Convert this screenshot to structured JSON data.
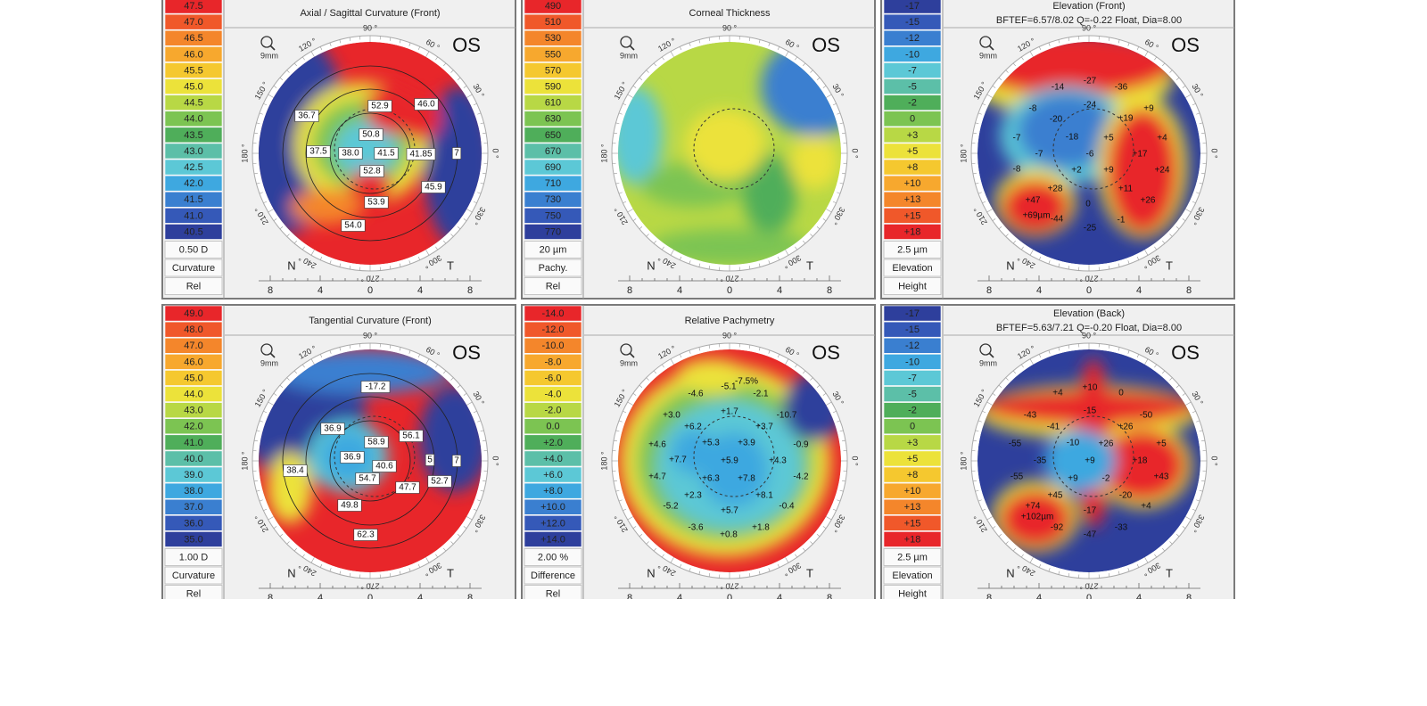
{
  "ring_labels": [
    "90 °",
    "60 °",
    "30 °",
    "0 °",
    "330 °",
    "300 °",
    "270 °",
    "240 °",
    "210 °",
    "180 °",
    "150 °",
    "120 °"
  ],
  "axis_labels": [
    "8",
    "4",
    "0",
    "4",
    "8"
  ],
  "nasal": "N",
  "temporal": "T",
  "eye": "OS",
  "zoom": "9mm",
  "panels": [
    {
      "title": "Axial / Sagittal Curvature (Front)",
      "scale": {
        "labels": [
          "47.5",
          "47.0",
          "46.5",
          "46.0",
          "45.5",
          "45.0",
          "44.5",
          "44.0",
          "43.5",
          "43.0",
          "42.5",
          "42.0",
          "41.5",
          "41.0",
          "40.5"
        ],
        "colors": [
          "#e8262a",
          "#f0582a",
          "#f4862b",
          "#f7a82e",
          "#f5c82f",
          "#ece23a",
          "#b8d845",
          "#7cc452",
          "#4fae5a",
          "#5cbfa8",
          "#5cc8d6",
          "#3ea8e0",
          "#3a7fd0",
          "#3559b8",
          "#2e3f9c"
        ],
        "step": "0.50 D",
        "kind": "Curvature",
        "mode": "Rel"
      },
      "annotations": [
        "36.7",
        "52.9",
        "46.0",
        "50.8",
        "37.5",
        "38.0",
        "41.5",
        "41.85",
        "7",
        "52.8",
        "45.9",
        "53.9",
        "54.0"
      ]
    },
    {
      "title": "Corneal Thickness",
      "scale": {
        "labels": [
          "490",
          "510",
          "530",
          "550",
          "570",
          "590",
          "610",
          "630",
          "650",
          "670",
          "690",
          "710",
          "730",
          "750",
          "770"
        ],
        "colors": [
          "#e8262a",
          "#f0582a",
          "#f4862b",
          "#f7a82e",
          "#f5c82f",
          "#ece23a",
          "#b8d845",
          "#7cc452",
          "#4fae5a",
          "#5cbfa8",
          "#5cc8d6",
          "#3ea8e0",
          "#3a7fd0",
          "#3559b8",
          "#2e3f9c"
        ],
        "step": "20 µm",
        "kind": "Pachy.",
        "mode": "Rel"
      },
      "annotations": []
    },
    {
      "title": "Elevation (Front)",
      "subtitle": "BFTEF=6.57/8.02 Q=-0.22 Float, Dia=8.00",
      "scale": {
        "labels": [
          "-17",
          "-15",
          "-12",
          "-10",
          "-7",
          "-5",
          "-2",
          "0",
          "+3",
          "+5",
          "+8",
          "+10",
          "+13",
          "+15",
          "+18"
        ],
        "colors": [
          "#2e3f9c",
          "#3559b8",
          "#3a7fd0",
          "#3ea8e0",
          "#5cc8d6",
          "#5cbfa8",
          "#4fae5a",
          "#7cc452",
          "#b8d845",
          "#ece23a",
          "#f5c82f",
          "#f7a82e",
          "#f4862b",
          "#f0582a",
          "#e8262a"
        ],
        "step": "2.5 µm",
        "kind": "Elevation",
        "mode": "Height"
      },
      "annotations": [
        "-14",
        "-27",
        "-36",
        "-8",
        "-20",
        "-24",
        "+19",
        "+9",
        "-7",
        "-18",
        "+5",
        "+4",
        "-7",
        "-6",
        "+17",
        "-8",
        "+2",
        "+9",
        "+24",
        "+28",
        "+11",
        "+47",
        "0",
        "+26",
        "+69µm",
        "-44",
        "-1",
        "-25"
      ]
    },
    {
      "title": "Tangential Curvature (Front)",
      "scale": {
        "labels": [
          "49.0",
          "48.0",
          "47.0",
          "46.0",
          "45.0",
          "44.0",
          "43.0",
          "42.0",
          "41.0",
          "40.0",
          "39.0",
          "38.0",
          "37.0",
          "36.0",
          "35.0"
        ],
        "colors": [
          "#e8262a",
          "#f0582a",
          "#f4862b",
          "#f7a82e",
          "#f5c82f",
          "#ece23a",
          "#b8d845",
          "#7cc452",
          "#4fae5a",
          "#5cbfa8",
          "#5cc8d6",
          "#3ea8e0",
          "#3a7fd0",
          "#3559b8",
          "#2e3f9c"
        ],
        "step": "1.00 D",
        "kind": "Curvature",
        "mode": "Rel"
      },
      "annotations": [
        "-17.2",
        "36.9",
        "58.9",
        "56.1",
        "38.4",
        "36.9",
        "40.6",
        "5",
        "7",
        "54.7",
        "47.7",
        "52.7",
        "49.8",
        "62.3"
      ]
    },
    {
      "title": "Relative Pachymetry",
      "scale": {
        "labels": [
          "-14.0",
          "-12.0",
          "-10.0",
          "-8.0",
          "-6.0",
          "-4.0",
          "-2.0",
          "0.0",
          "+2.0",
          "+4.0",
          "+6.0",
          "+8.0",
          "+10.0",
          "+12.0",
          "+14.0"
        ],
        "colors": [
          "#e8262a",
          "#f0582a",
          "#f4862b",
          "#f7a82e",
          "#f5c82f",
          "#ece23a",
          "#b8d845",
          "#7cc452",
          "#4fae5a",
          "#5cbfa8",
          "#5cc8d6",
          "#3ea8e0",
          "#3a7fd0",
          "#3559b8",
          "#2e3f9c"
        ],
        "step": "2.00 %",
        "kind": "Difference",
        "mode": "Rel"
      },
      "annotations": [
        "-7.5%",
        "-5.1",
        "-4.6",
        "-2.1",
        "+3.0",
        "+1.7",
        "-10.7",
        "+6.2",
        "+3.7",
        "+4.6",
        "+5.3",
        "+3.9",
        "-0.9",
        "+7.7",
        "+5.9",
        "+4.3",
        "+4.7",
        "+6.3",
        "+7.8",
        "-4.2",
        "+2.3",
        "+8.1",
        "-5.2",
        "+5.7",
        "-0.4",
        "-3.6",
        "+0.8",
        "+1.8"
      ]
    },
    {
      "title": "Elevation (Back)",
      "subtitle": "BFTEF=5.63/7.21 Q=-0.20 Float, Dia=8.00",
      "scale": {
        "labels": [
          "-17",
          "-15",
          "-12",
          "-10",
          "-7",
          "-5",
          "-2",
          "0",
          "+3",
          "+5",
          "+8",
          "+10",
          "+13",
          "+15",
          "+18"
        ],
        "colors": [
          "#2e3f9c",
          "#3559b8",
          "#3a7fd0",
          "#3ea8e0",
          "#5cc8d6",
          "#5cbfa8",
          "#4fae5a",
          "#7cc452",
          "#b8d845",
          "#ece23a",
          "#f5c82f",
          "#f7a82e",
          "#f4862b",
          "#f0582a",
          "#e8262a"
        ],
        "step": "2.5 µm",
        "kind": "Elevation",
        "mode": "Height"
      },
      "annotations": [
        "+4",
        "+10",
        "0",
        "-43",
        "-15",
        "-50",
        "-41",
        "+26",
        "-55",
        "-10",
        "+26",
        "+5",
        "-35",
        "+9",
        "+18",
        "-55",
        "+9",
        "-2",
        "+43",
        "+45",
        "-20",
        "+74",
        "-17",
        "+4",
        "+102µm",
        "-92",
        "-47",
        "-33"
      ]
    }
  ]
}
